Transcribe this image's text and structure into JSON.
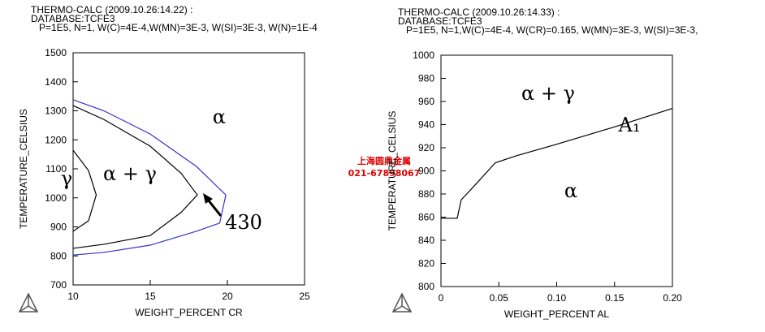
{
  "chart_data": [
    {
      "type": "line",
      "header": [
        "THERMO-CALC (2009.10.26:14.22) :",
        "DATABASE:TCFE3",
        "P=1E5, N=1, W(C)=4E-4,W(MN)=3E-3, W(SI)=3E-3, W(N)=1E-4"
      ],
      "xlabel": "WEIGHT_PERCENT CR",
      "ylabel": "TEMPERATURE_CELSIUS",
      "xlim": [
        10,
        25
      ],
      "ylim": [
        700,
        1500
      ],
      "xticks": [
        10,
        15,
        20,
        25
      ],
      "yticks": [
        700,
        800,
        900,
        1000,
        1100,
        1200,
        1300,
        1400,
        1500
      ],
      "series": [
        {
          "color": "#3333cc",
          "x": [
            10,
            12,
            15,
            18,
            19.9,
            19.5,
            18,
            15,
            12,
            10
          ],
          "values": [
            1338,
            1300,
            1220,
            1108,
            1010,
            913,
            885,
            837,
            812,
            803
          ]
        },
        {
          "color": "#000000",
          "x": [
            10,
            12,
            15,
            17,
            18.05,
            17,
            15,
            12,
            10
          ],
          "values": [
            1318,
            1270,
            1178,
            1085,
            1010,
            950,
            870,
            840,
            826
          ]
        },
        {
          "color": "#000000",
          "x": [
            10,
            11,
            11.5,
            11,
            10
          ],
          "values": [
            1164,
            1094,
            1010,
            921,
            885
          ]
        }
      ],
      "annotations": [
        "α",
        "α + γ",
        "γ",
        "430"
      ]
    },
    {
      "type": "line",
      "header": [
        "THERMO-CALC (2009.10.26:14.33) :",
        "DATABASE:TCFE3",
        "P=1E5, N=1,W(C)=4E-4, W(CR)=0.165, W(MN)=3E-3, W(SI)=3E-3,"
      ],
      "xlabel": "WEIGHT_PERCENT AL",
      "ylabel": "TEMPERATURE_CELSIUS",
      "xlim": [
        0,
        0.2
      ],
      "ylim": [
        800,
        1000
      ],
      "xticks": [
        0,
        0.05,
        {
          "value": 0.1,
          "label": "0.10"
        },
        0.15,
        {
          "value": 0.2,
          "label": "0.20"
        }
      ],
      "yticks": [
        800,
        820,
        840,
        860,
        880,
        900,
        920,
        940,
        960,
        980,
        1000
      ],
      "series": [
        {
          "color": "#000000",
          "x": [
            0,
            0.014,
            0.0175,
            0.026,
            0.047,
            0.065,
            0.1,
            0.15,
            0.2
          ],
          "values": [
            859,
            859,
            875,
            884,
            907,
            913,
            923,
            938,
            954
          ]
        }
      ],
      "annotations": [
        "α + γ",
        "A₁",
        "α"
      ]
    }
  ],
  "watermark": [
    "上海圆鼎金属",
    "021-67898067"
  ]
}
